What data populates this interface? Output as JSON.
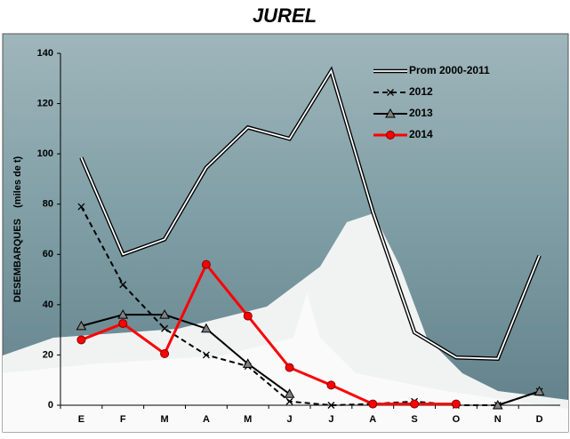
{
  "chart_data": {
    "type": "line",
    "title": "JUREL",
    "y_label": "DESEMBARQUES    (miles de t)",
    "categories": [
      "E",
      "F",
      "M",
      "A",
      "M",
      "J",
      "J",
      "A",
      "S",
      "O",
      "N",
      "D"
    ],
    "series": [
      {
        "name": "Prom 2000-2011",
        "color": "#000000",
        "marker": "none",
        "style": "double",
        "values": [
          98.5,
          60,
          66,
          94.5,
          110.5,
          106,
          133,
          77,
          29,
          19,
          18.5,
          59.5
        ]
      },
      {
        "name": "2012",
        "color": "#000000",
        "marker": "x",
        "style": "dashed",
        "values": [
          79,
          48,
          30.5,
          20,
          15.5,
          1.5,
          0,
          0.5,
          1.5,
          0,
          0,
          5.5
        ]
      },
      {
        "name": "2013",
        "color": "#000000",
        "marker": "triangle",
        "style": "solid",
        "values": [
          31.5,
          36,
          36,
          30.5,
          16.5,
          4.5,
          null,
          null,
          null,
          null,
          0,
          5.5
        ]
      },
      {
        "name": "2014",
        "color": "#ff0000",
        "marker": "circle",
        "style": "solid",
        "values": [
          26,
          32.5,
          20.5,
          56,
          35.5,
          15,
          8,
          0.5,
          0.5,
          0.5,
          null,
          null
        ]
      }
    ],
    "ylim": [
      0,
      140
    ],
    "yticks": [
      0,
      20,
      40,
      60,
      80,
      100,
      120,
      140
    ],
    "legend": "upper right"
  }
}
